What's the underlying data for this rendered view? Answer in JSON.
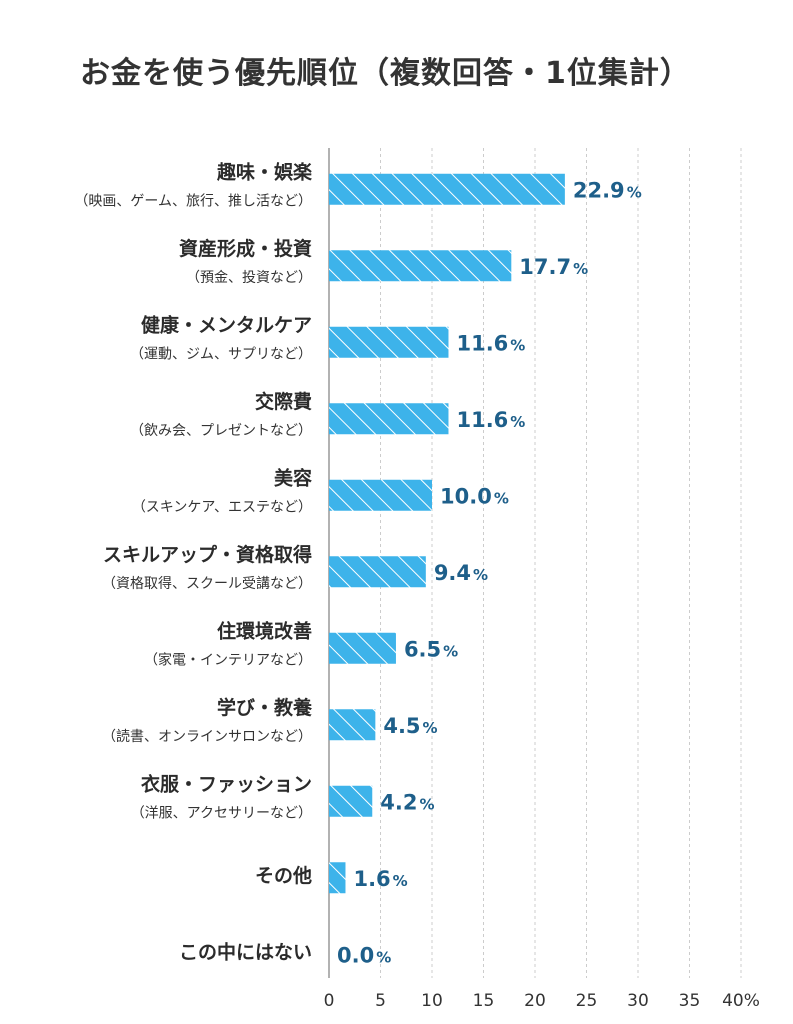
{
  "title": "お金を使う優先順位（複数回答・1位集計）",
  "colors": {
    "bar": "#3db3ea",
    "bar_hatch": "#ffffff",
    "value_text": "#1e5f8a",
    "grid": "#cccccc",
    "axis": "#999999"
  },
  "chart_data": {
    "type": "bar",
    "orientation": "horizontal",
    "title": "お金を使う優先順位（複数回答・1位集計）",
    "categories": [
      {
        "label": "趣味・娯楽",
        "sublabel": "（映画、ゲーム、旅行、推し活など）"
      },
      {
        "label": "資産形成・投資",
        "sublabel": "（預金、投資など）"
      },
      {
        "label": "健康・メンタルケア",
        "sublabel": "（運動、ジム、サプリなど）"
      },
      {
        "label": "交際費",
        "sublabel": "（飲み会、プレゼントなど）"
      },
      {
        "label": "美容",
        "sublabel": "（スキンケア、エステなど）"
      },
      {
        "label": "スキルアップ・資格取得",
        "sublabel": "（資格取得、スクール受講など）"
      },
      {
        "label": "住環境改善",
        "sublabel": "（家電・インテリアなど）"
      },
      {
        "label": "学び・教養",
        "sublabel": "（読書、オンラインサロンなど）"
      },
      {
        "label": "衣服・ファッション",
        "sublabel": "（洋服、アクセサリーなど）"
      },
      {
        "label": "その他",
        "sublabel": ""
      },
      {
        "label": "この中にはない",
        "sublabel": ""
      }
    ],
    "values": [
      22.9,
      17.7,
      11.6,
      11.6,
      10.0,
      9.4,
      6.5,
      4.5,
      4.2,
      1.6,
      0.0
    ],
    "value_labels": [
      "22.9",
      "17.7",
      "11.6",
      "11.6",
      "10.0",
      "9.4",
      "6.5",
      "4.5",
      "4.2",
      "1.6",
      "0.0"
    ],
    "value_unit": "%",
    "xlim": [
      0,
      40
    ],
    "x_ticks": [
      "0",
      "5",
      "10",
      "15",
      "20",
      "25",
      "30",
      "35",
      "40%"
    ],
    "x_tick_values": [
      0,
      5,
      10,
      15,
      20,
      25,
      30,
      35,
      40
    ],
    "grid": "vertical dashed",
    "legend": "none"
  }
}
